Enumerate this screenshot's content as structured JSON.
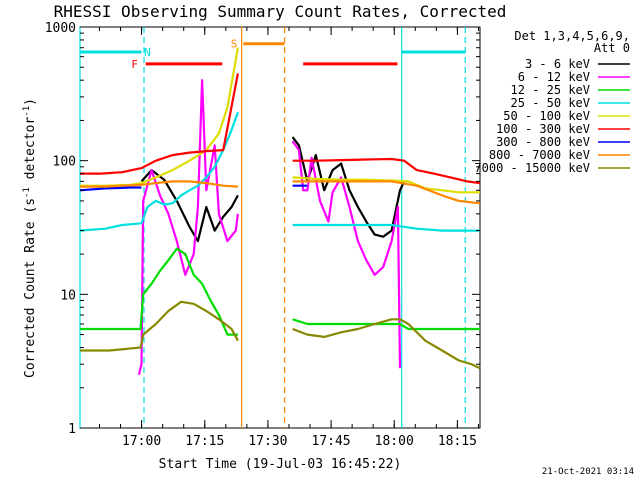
{
  "chart_data": {
    "type": "line",
    "title": "RHESSI Observing Summary Count Rates, Corrected",
    "xlabel": "Start Time (19-Jul-03 16:45:22)",
    "ylabel_main": "Corrected Count Rate (s",
    "ylabel_sup1": "-1",
    "ylabel_mid": " detector",
    "ylabel_sup2": "-1",
    "ylabel_end": ")",
    "yscale": "log",
    "ylim": [
      1,
      1000
    ],
    "xlim_minutes_after_start": [
      0,
      95
    ],
    "x_ticks": [
      {
        "label": "17:00",
        "minutes": 14.63
      },
      {
        "label": "17:15",
        "minutes": 29.63
      },
      {
        "label": "17:30",
        "minutes": 44.63
      },
      {
        "label": "17:45",
        "minutes": 59.63
      },
      {
        "label": "18:00",
        "minutes": 74.63
      },
      {
        "label": "18:15",
        "minutes": 89.63
      }
    ],
    "y_ticks": [
      {
        "label": "1",
        "value": 1
      },
      {
        "label": "10",
        "value": 10
      },
      {
        "label": "100",
        "value": 100
      },
      {
        "label": "1000",
        "value": 1000
      }
    ],
    "legend_title_line1": "Det 1,3,4,5,6,9,",
    "legend_title_line2": "Att 0",
    "series": [
      {
        "name": "3 - 6 keV",
        "color": "#000000",
        "points": [
          [
            14.6,
            70
          ],
          [
            17,
            85
          ],
          [
            20,
            72
          ],
          [
            23,
            50
          ],
          [
            26,
            32
          ],
          [
            28,
            25
          ],
          [
            30,
            45
          ],
          [
            32,
            30
          ],
          [
            34,
            38
          ],
          [
            36,
            45
          ],
          [
            37.5,
            55
          ],
          null,
          [
            50.5,
            150
          ],
          [
            52,
            130
          ],
          [
            54,
            70
          ],
          [
            56,
            110
          ],
          [
            58,
            60
          ],
          [
            60,
            85
          ],
          [
            62,
            95
          ],
          [
            64,
            60
          ],
          [
            66,
            45
          ],
          [
            68,
            35
          ],
          [
            70,
            28
          ],
          [
            72,
            27
          ],
          [
            74,
            30
          ],
          [
            76,
            60
          ],
          [
            77,
            70
          ]
        ]
      },
      {
        "name": "6 - 12 keV",
        "color": "#ff00ff",
        "points": [
          [
            14,
            2.5
          ],
          [
            14.6,
            3
          ],
          [
            15,
            50
          ],
          [
            17,
            85
          ],
          [
            19,
            55
          ],
          [
            21,
            40
          ],
          [
            23,
            25
          ],
          [
            25,
            14
          ],
          [
            27,
            20
          ],
          [
            28,
            45
          ],
          [
            29,
            400
          ],
          [
            30,
            60
          ],
          [
            32,
            130
          ],
          [
            33,
            40
          ],
          [
            35,
            25
          ],
          [
            37,
            30
          ],
          [
            37.5,
            40
          ],
          null,
          [
            50.5,
            140
          ],
          [
            52,
            120
          ],
          [
            53,
            60
          ],
          [
            54,
            60
          ],
          [
            55,
            105
          ],
          [
            57,
            50
          ],
          [
            59,
            35
          ],
          [
            60,
            58
          ],
          [
            62,
            75
          ],
          [
            64,
            45
          ],
          [
            66,
            25
          ],
          [
            68,
            18
          ],
          [
            70,
            14
          ],
          [
            72,
            16
          ],
          [
            74,
            25
          ],
          [
            75.5,
            45
          ],
          [
            76,
            2.8
          ]
        ]
      },
      {
        "name": "12 - 25 keV",
        "color": "#00dd00",
        "points": [
          [
            0,
            5.5
          ],
          [
            14.4,
            5.5
          ],
          [
            15,
            10
          ],
          [
            17,
            12
          ],
          [
            19,
            15
          ],
          [
            21,
            18
          ],
          [
            23,
            22
          ],
          [
            25,
            20
          ],
          [
            27,
            14
          ],
          [
            29,
            12
          ],
          [
            31,
            9
          ],
          [
            33,
            7
          ],
          [
            35,
            5
          ],
          [
            37.5,
            5
          ],
          null,
          [
            50.5,
            6.5
          ],
          [
            54,
            6
          ],
          [
            60,
            6
          ],
          [
            66,
            6
          ],
          [
            72,
            6
          ],
          [
            76,
            6
          ],
          [
            78,
            5.5
          ],
          [
            85,
            5.5
          ],
          [
            92,
            5.5
          ],
          [
            95,
            5.5
          ]
        ]
      },
      {
        "name": "25 - 50 keV",
        "color": "#00e0e0",
        "points": [
          [
            0,
            30
          ],
          [
            6,
            31
          ],
          [
            10,
            33
          ],
          [
            14.6,
            34
          ],
          [
            16,
            45
          ],
          [
            18,
            50
          ],
          [
            20,
            47
          ],
          [
            22,
            48
          ],
          [
            24,
            55
          ],
          [
            26,
            60
          ],
          [
            28,
            65
          ],
          [
            30,
            75
          ],
          [
            32,
            90
          ],
          [
            34,
            120
          ],
          [
            36,
            170
          ],
          [
            37.5,
            230
          ],
          null,
          [
            50.5,
            33
          ],
          [
            56,
            33
          ],
          [
            62,
            33
          ],
          [
            68,
            33
          ],
          [
            74,
            33
          ],
          [
            80,
            31
          ],
          [
            86,
            30
          ],
          [
            95,
            30
          ]
        ]
      },
      {
        "name": "50 - 100 keV",
        "color": "#dddd00",
        "points": [
          [
            0,
            65
          ],
          [
            6,
            65
          ],
          [
            12,
            66
          ],
          [
            14.6,
            68
          ],
          [
            18,
            75
          ],
          [
            22,
            85
          ],
          [
            26,
            100
          ],
          [
            30,
            120
          ],
          [
            33,
            160
          ],
          [
            35,
            250
          ],
          [
            37.5,
            700
          ],
          null,
          [
            50.5,
            75
          ],
          [
            56,
            73
          ],
          [
            62,
            72
          ],
          [
            68,
            72
          ],
          [
            74,
            71
          ],
          [
            78,
            70
          ],
          [
            82,
            62
          ],
          [
            86,
            60
          ],
          [
            90,
            58
          ],
          [
            95,
            58
          ]
        ]
      },
      {
        "name": "100 - 300 keV",
        "color": "#ff0000",
        "points": [
          [
            0,
            80
          ],
          [
            5,
            80
          ],
          [
            10,
            82
          ],
          [
            14.6,
            88
          ],
          [
            18,
            100
          ],
          [
            22,
            110
          ],
          [
            26,
            115
          ],
          [
            30,
            118
          ],
          [
            34,
            120
          ],
          [
            37.5,
            450
          ],
          null,
          [
            50.5,
            100
          ],
          [
            56,
            100
          ],
          [
            62,
            101
          ],
          [
            68,
            102
          ],
          [
            74,
            103
          ],
          [
            77,
            100
          ],
          [
            80,
            85
          ],
          [
            84,
            80
          ],
          [
            88,
            75
          ],
          [
            92,
            70
          ],
          [
            95,
            68
          ]
        ]
      },
      {
        "name": "300 - 800 keV",
        "color": "#0000ff",
        "points": [
          [
            0,
            60
          ],
          [
            6,
            62
          ],
          [
            12,
            63
          ],
          [
            14.6,
            63
          ],
          null,
          [
            50.5,
            65
          ],
          [
            54,
            65
          ]
        ]
      },
      {
        "name": "800 - 7000 keV",
        "color": "#ff8800",
        "points": [
          [
            0,
            64
          ],
          [
            6,
            64
          ],
          [
            10,
            65
          ],
          [
            14.6,
            66
          ],
          [
            18,
            68
          ],
          [
            22,
            70
          ],
          [
            26,
            70
          ],
          [
            30,
            68
          ],
          [
            34,
            65
          ],
          [
            37.5,
            64
          ],
          null,
          [
            50.5,
            70
          ],
          [
            56,
            70
          ],
          [
            62,
            70
          ],
          [
            68,
            70
          ],
          [
            74,
            70
          ],
          [
            80,
            65
          ],
          [
            86,
            55
          ],
          [
            90,
            50
          ],
          [
            95,
            48
          ]
        ]
      },
      {
        "name": "7000 - 15000 keV",
        "color": "#888800",
        "points": [
          [
            0,
            3.8
          ],
          [
            7,
            3.8
          ],
          [
            14.4,
            4
          ],
          [
            15,
            5
          ],
          [
            18,
            6
          ],
          [
            21,
            7.5
          ],
          [
            24,
            8.8
          ],
          [
            27,
            8.5
          ],
          [
            30,
            7.5
          ],
          [
            33,
            6.5
          ],
          [
            36,
            5.5
          ],
          [
            37.5,
            4.5
          ],
          null,
          [
            50.5,
            5.5
          ],
          [
            54,
            5
          ],
          [
            58,
            4.8
          ],
          [
            62,
            5.2
          ],
          [
            66,
            5.5
          ],
          [
            70,
            6
          ],
          [
            74,
            6.5
          ],
          [
            76,
            6.5
          ],
          [
            78,
            6
          ],
          [
            82,
            4.5
          ],
          [
            86,
            3.8
          ],
          [
            90,
            3.2
          ],
          [
            93,
            3
          ],
          [
            95,
            2.8
          ]
        ]
      }
    ],
    "flag_bars": [
      {
        "label": "N",
        "color": "#00e0e0",
        "y": 650,
        "start": 0,
        "end": 14.6,
        "label_at": 16,
        "label_color": "#00e0e0"
      },
      {
        "label": "",
        "color": "#00e0e0",
        "y": 650,
        "start": 76.4,
        "end": 91.5,
        "label_at": null,
        "label_color": null
      },
      {
        "label": "F",
        "color": "#ff0000",
        "y": 530,
        "start": 15.6,
        "end": 33.8,
        "label_at": 13,
        "label_color": "#ff0000"
      },
      {
        "label": "",
        "color": "#ff0000",
        "y": 530,
        "start": 53,
        "end": 75.4,
        "label_at": null,
        "label_color": null
      },
      {
        "label": "S",
        "color": "#ff8800",
        "y": 750,
        "start": 38.8,
        "end": 48.6,
        "label_at": 36.6,
        "label_color": "#ff8800"
      }
    ],
    "vertical_lines": [
      {
        "minutes": 0,
        "color": "#00e0e0",
        "style": "solid"
      },
      {
        "minutes": 15.2,
        "color": "#00e0e0",
        "style": "dashed"
      },
      {
        "minutes": 38.4,
        "color": "#ff8800",
        "style": "solid"
      },
      {
        "minutes": 48.6,
        "color": "#ff8800",
        "style": "dashed"
      },
      {
        "minutes": 76.4,
        "color": "#00e0e0",
        "style": "solid"
      },
      {
        "minutes": 91.5,
        "color": "#00e0e0",
        "style": "dashed"
      }
    ],
    "timestamp": "21-Oct-2021 03:14"
  }
}
